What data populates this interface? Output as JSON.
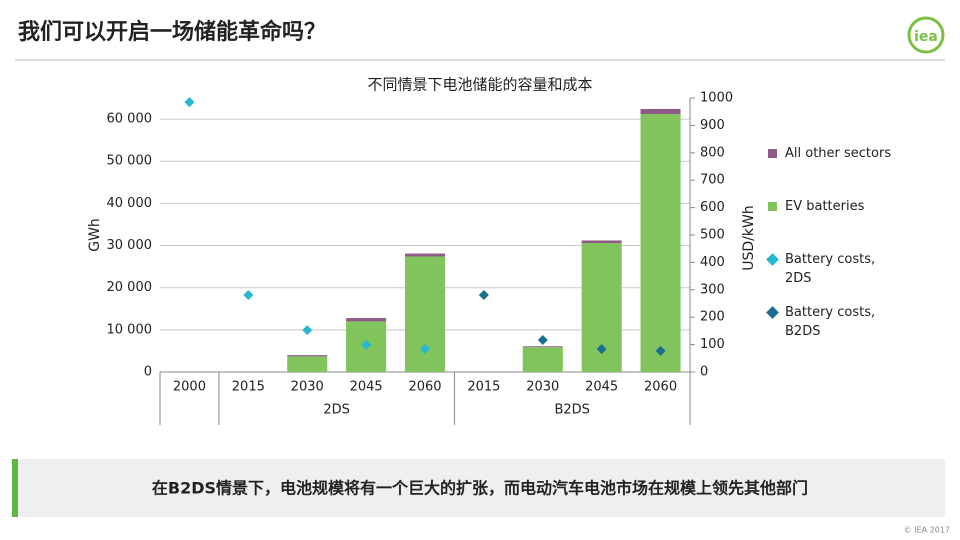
{
  "header": {
    "title": "我们可以开启一场储能革命吗？",
    "logo": "iea"
  },
  "chart_data": {
    "type": "bar",
    "title": "不同情景下电池储能的容量和成本",
    "y_label": "GWh",
    "y2_label": "USD/kWh",
    "categories": [
      "2000",
      "2015",
      "2030",
      "2045",
      "2060",
      "2015",
      "2030",
      "2045",
      "2060"
    ],
    "groups": [
      {
        "label": null,
        "span": 1
      },
      {
        "label": "2DS",
        "span": 4
      },
      {
        "label": "B2DS",
        "span": 4
      }
    ],
    "stacked": true,
    "grid": true,
    "ylim": [
      0,
      65000
    ],
    "yticks": [
      0,
      {
        "value": 10000,
        "label": "10 000"
      },
      {
        "value": 20000,
        "label": "20 000"
      },
      {
        "value": 30000,
        "label": "30 000"
      },
      {
        "value": 40000,
        "label": "40 000"
      },
      {
        "value": 50000,
        "label": "50 000"
      },
      {
        "value": 60000,
        "label": "60 000"
      }
    ],
    "y2lim": [
      0,
      1000
    ],
    "y2ticks": [
      0,
      100,
      200,
      300,
      400,
      500,
      600,
      700,
      800,
      900,
      1000
    ],
    "series": [
      {
        "name": "All other sectors",
        "type": "bar",
        "color": "#8e5b86",
        "values": [
          null,
          null,
          300,
          800,
          700,
          null,
          200,
          600,
          1200
        ]
      },
      {
        "name": "EV batteries",
        "type": "bar",
        "color": "#82c45c",
        "values": [
          null,
          null,
          3700,
          12000,
          27400,
          null,
          5900,
          30600,
          61200
        ]
      },
      {
        "name": "Battery costs, 2DS",
        "type": "scatter",
        "axis": "y2",
        "color": "#25b8cf",
        "values": [
          985,
          281,
          153,
          99,
          84,
          null,
          null,
          null,
          null
        ]
      },
      {
        "name": "Battery costs, B2DS",
        "type": "scatter",
        "axis": "y2",
        "color": "#1a6e8e",
        "values": [
          null,
          null,
          null,
          null,
          null,
          281,
          117,
          84,
          77
        ]
      }
    ]
  },
  "banner": "在B2DS情景下，电池规模将有一个巨大的扩张，而电动汽车电池市场在规模上领先其他部门",
  "footer": "© IEA 2017"
}
